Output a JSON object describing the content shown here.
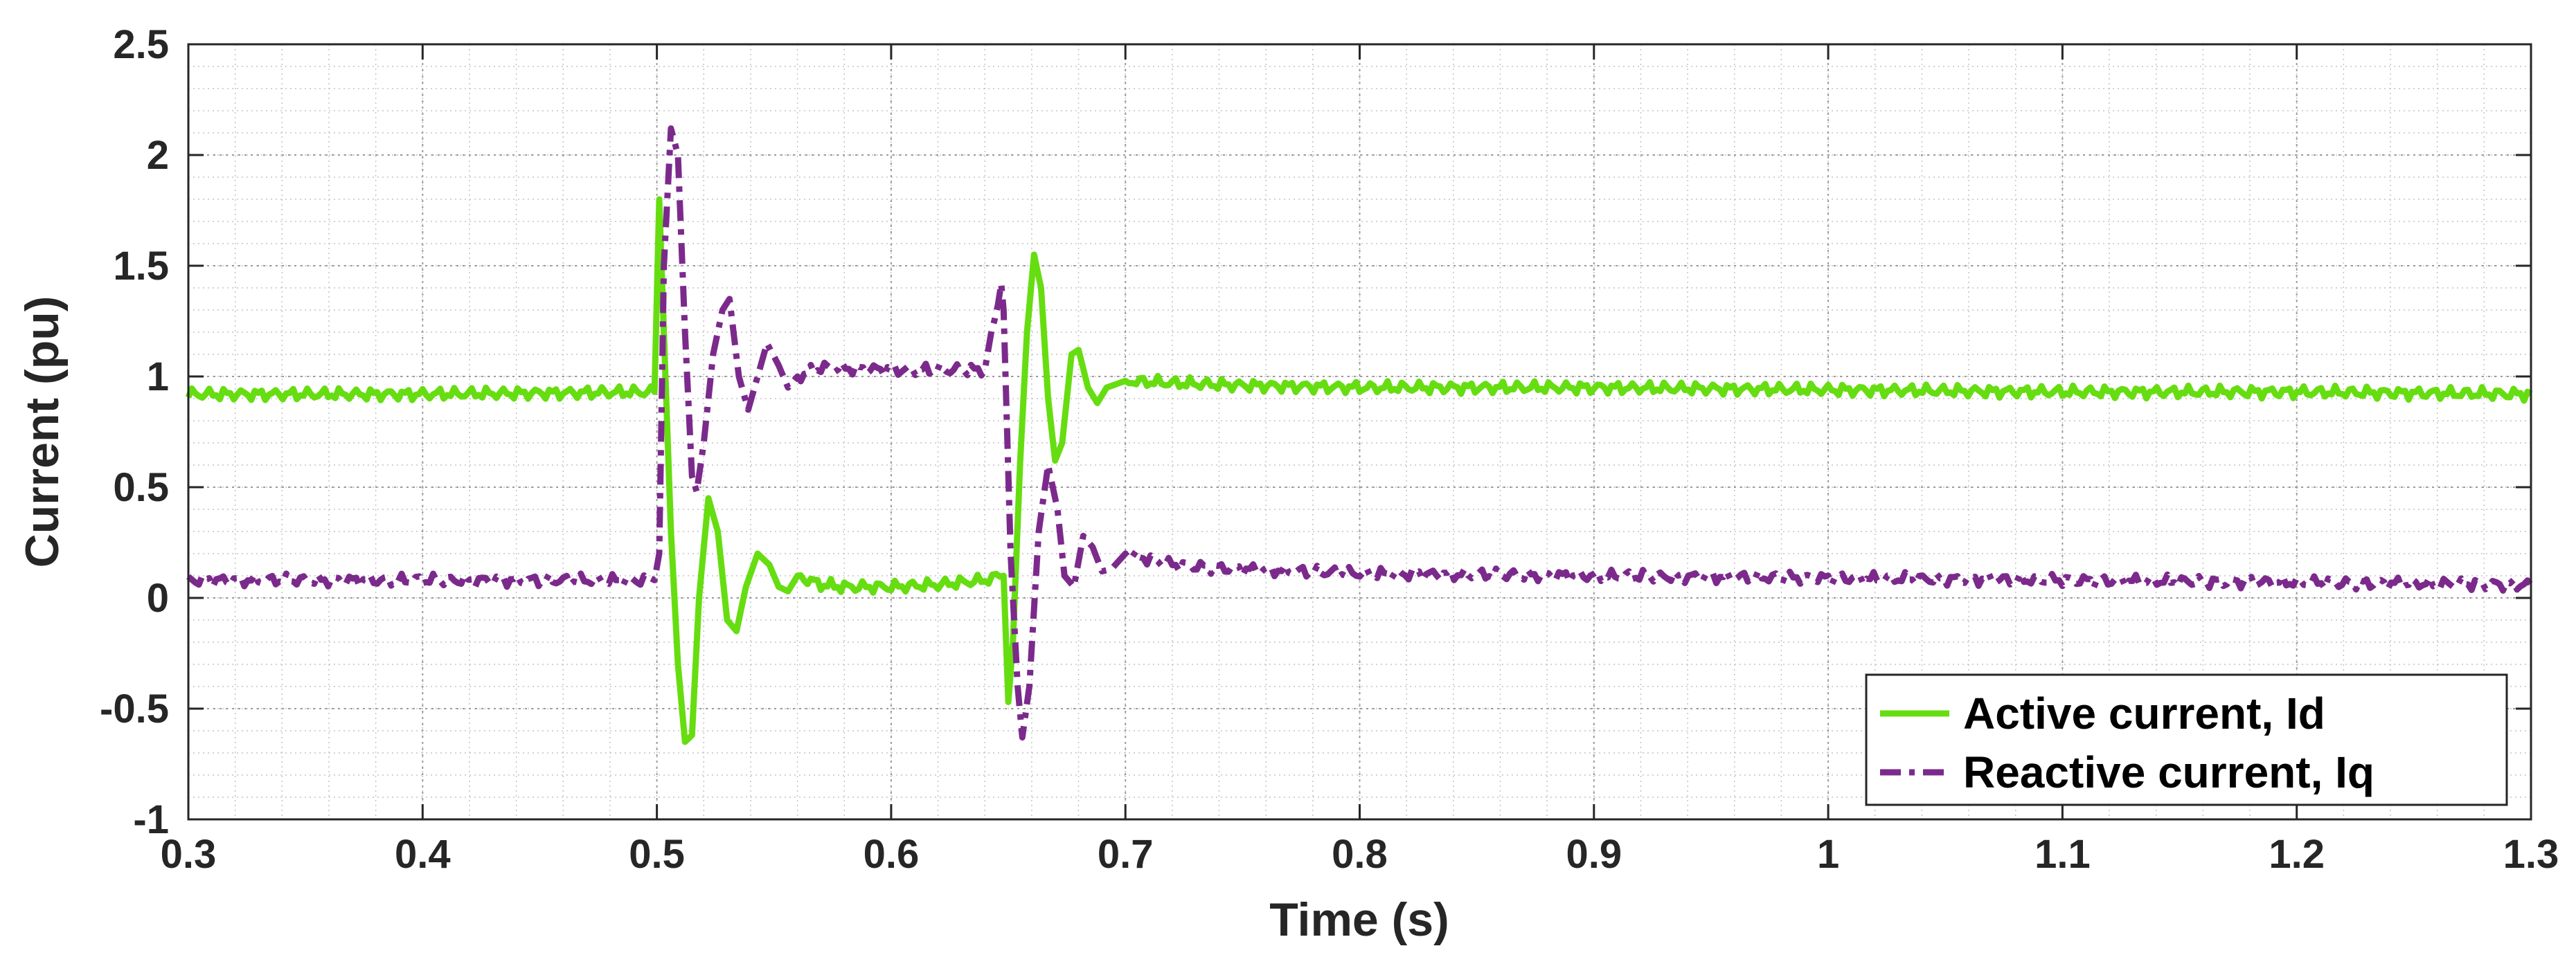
{
  "chart_data": {
    "type": "line",
    "title": "",
    "xlabel": "Time (s)",
    "ylabel": "Current (pu)",
    "xlim": [
      0.3,
      1.3
    ],
    "ylim": [
      -1,
      2.5
    ],
    "xticks": [
      "0.3",
      "0.4",
      "0.5",
      "0.6",
      "0.7",
      "0.8",
      "0.9",
      "1",
      "1.1",
      "1.2",
      "1.3"
    ],
    "yticks": [
      "-1",
      "-0.5",
      "0",
      "0.5",
      "1",
      "1.5",
      "2",
      "2.5"
    ],
    "grid": true,
    "minor_grid": true,
    "legend_position": "bottom-right",
    "series": [
      {
        "name": "Active current, Id",
        "color": "#66dd11",
        "style": "solid",
        "points": [
          [
            0.3,
            0.92
          ],
          [
            0.4,
            0.92
          ],
          [
            0.499,
            0.93
          ],
          [
            0.501,
            1.8
          ],
          [
            0.503,
            1.2
          ],
          [
            0.506,
            0.3
          ],
          [
            0.509,
            -0.3
          ],
          [
            0.512,
            -0.65
          ],
          [
            0.515,
            -0.62
          ],
          [
            0.518,
            0.0
          ],
          [
            0.522,
            0.45
          ],
          [
            0.526,
            0.3
          ],
          [
            0.53,
            -0.1
          ],
          [
            0.534,
            -0.15
          ],
          [
            0.538,
            0.05
          ],
          [
            0.543,
            0.2
          ],
          [
            0.548,
            0.15
          ],
          [
            0.552,
            0.05
          ],
          [
            0.556,
            0.03
          ],
          [
            0.56,
            0.1
          ],
          [
            0.57,
            0.06
          ],
          [
            0.58,
            0.05
          ],
          [
            0.6,
            0.05
          ],
          [
            0.62,
            0.06
          ],
          [
            0.64,
            0.08
          ],
          [
            0.648,
            0.1
          ],
          [
            0.65,
            -0.47
          ],
          [
            0.652,
            -0.2
          ],
          [
            0.655,
            0.6
          ],
          [
            0.658,
            1.2
          ],
          [
            0.661,
            1.55
          ],
          [
            0.664,
            1.4
          ],
          [
            0.667,
            0.9
          ],
          [
            0.67,
            0.62
          ],
          [
            0.673,
            0.7
          ],
          [
            0.677,
            1.1
          ],
          [
            0.68,
            1.12
          ],
          [
            0.684,
            0.95
          ],
          [
            0.688,
            0.88
          ],
          [
            0.692,
            0.95
          ],
          [
            0.7,
            0.98
          ],
          [
            0.72,
            0.97
          ],
          [
            0.75,
            0.96
          ],
          [
            0.8,
            0.95
          ],
          [
            0.9,
            0.95
          ],
          [
            1.0,
            0.94
          ],
          [
            1.1,
            0.93
          ],
          [
            1.2,
            0.93
          ],
          [
            1.3,
            0.92
          ]
        ]
      },
      {
        "name": "Reactive current, Iq",
        "color": "#7b2a8c",
        "style": "dashdot",
        "points": [
          [
            0.3,
            0.08
          ],
          [
            0.4,
            0.08
          ],
          [
            0.499,
            0.08
          ],
          [
            0.501,
            0.2
          ],
          [
            0.503,
            1.5
          ],
          [
            0.506,
            2.12
          ],
          [
            0.509,
            2.0
          ],
          [
            0.512,
            1.2
          ],
          [
            0.515,
            0.55
          ],
          [
            0.517,
            0.48
          ],
          [
            0.52,
            0.7
          ],
          [
            0.524,
            1.1
          ],
          [
            0.528,
            1.3
          ],
          [
            0.531,
            1.35
          ],
          [
            0.535,
            1.0
          ],
          [
            0.539,
            0.85
          ],
          [
            0.543,
            1.0
          ],
          [
            0.547,
            1.15
          ],
          [
            0.552,
            1.05
          ],
          [
            0.556,
            0.95
          ],
          [
            0.56,
            1.0
          ],
          [
            0.57,
            1.04
          ],
          [
            0.6,
            1.03
          ],
          [
            0.64,
            1.03
          ],
          [
            0.647,
            1.42
          ],
          [
            0.648,
            1.3
          ],
          [
            0.651,
            0.2
          ],
          [
            0.654,
            -0.4
          ],
          [
            0.656,
            -0.63
          ],
          [
            0.659,
            -0.4
          ],
          [
            0.663,
            0.3
          ],
          [
            0.667,
            0.6
          ],
          [
            0.671,
            0.4
          ],
          [
            0.674,
            0.1
          ],
          [
            0.678,
            0.05
          ],
          [
            0.682,
            0.28
          ],
          [
            0.686,
            0.23
          ],
          [
            0.69,
            0.12
          ],
          [
            0.694,
            0.13
          ],
          [
            0.7,
            0.2
          ],
          [
            0.72,
            0.15
          ],
          [
            0.75,
            0.13
          ],
          [
            0.8,
            0.11
          ],
          [
            0.9,
            0.1
          ],
          [
            1.0,
            0.09
          ],
          [
            1.1,
            0.08
          ],
          [
            1.2,
            0.07
          ],
          [
            1.3,
            0.06
          ]
        ]
      }
    ]
  }
}
